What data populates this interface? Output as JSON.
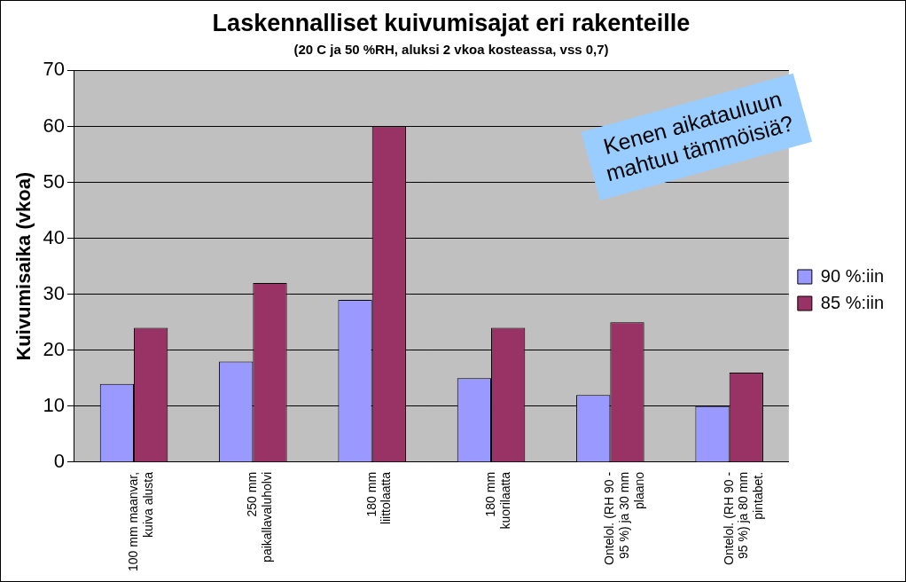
{
  "chart_data": {
    "type": "bar",
    "title": "Laskennalliset kuivumisajat eri rakenteille",
    "subtitle": "(20 C ja 50 %RH, aluksi 2 vkoa kosteassa, vss 0,7)",
    "y_label": "Kuivumisaika (vkoa)",
    "annotation": "Kenen aikatauluun mahtuu tämmöisiä?",
    "categories": [
      "100 mm maanvar, kuiva alusta",
      "250 mm paikallavaluholvi",
      "180 mm liittolaatta",
      "180 mm kuorilaatta",
      "Ontelol. (RH 90 - 95 %) ja 30 mm plaano",
      "Ontelol. (RH 90 - 95 %) ja 80 mm pintabet."
    ],
    "series": [
      {
        "name": "90 %:iin",
        "color": "#9999ff",
        "values": [
          14,
          18,
          29,
          15,
          12,
          10
        ]
      },
      {
        "name": "85 %:iin",
        "color": "#993366",
        "values": [
          24,
          32,
          60,
          24,
          25,
          16
        ]
      }
    ],
    "ylim": [
      0,
      70
    ],
    "yticks": [
      0,
      10,
      20,
      30,
      40,
      50,
      60,
      70
    ],
    "grid": true,
    "legend": "right"
  }
}
